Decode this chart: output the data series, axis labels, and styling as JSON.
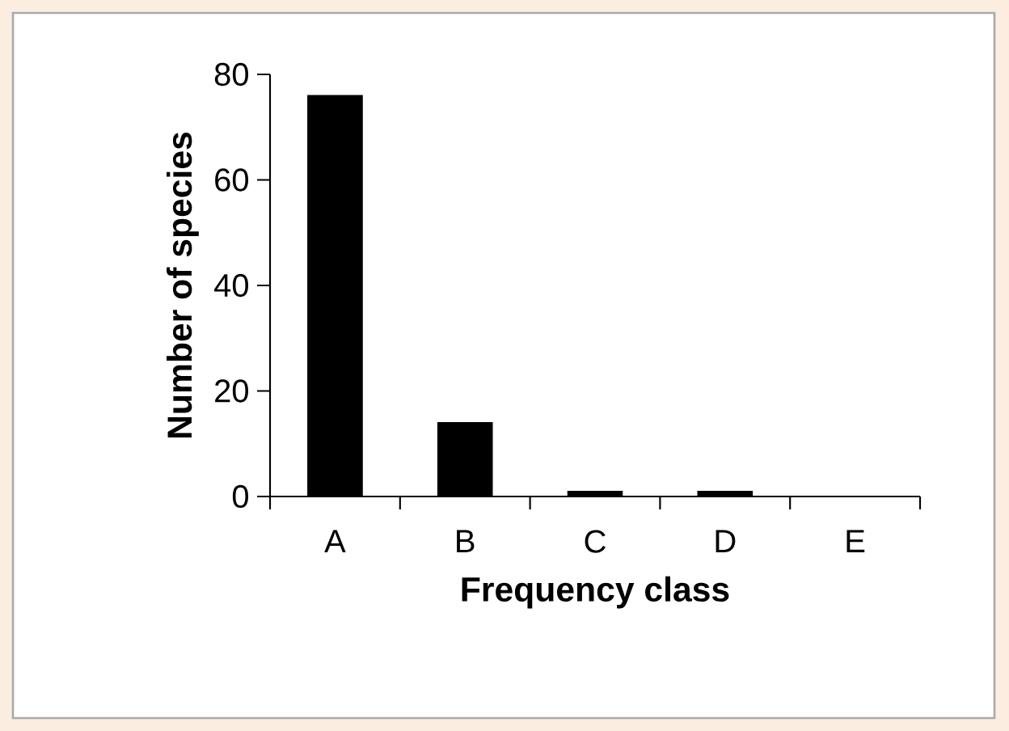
{
  "chart_data": {
    "type": "bar",
    "xlabel": "Frequency class",
    "ylabel": "Number of species",
    "categories": [
      "A",
      "B",
      "C",
      "D",
      "E"
    ],
    "values": [
      76,
      14,
      1,
      1,
      0
    ],
    "color": "#000000",
    "ylim": [
      0,
      80
    ],
    "yticks": [
      0,
      20,
      40,
      60,
      80
    ]
  }
}
